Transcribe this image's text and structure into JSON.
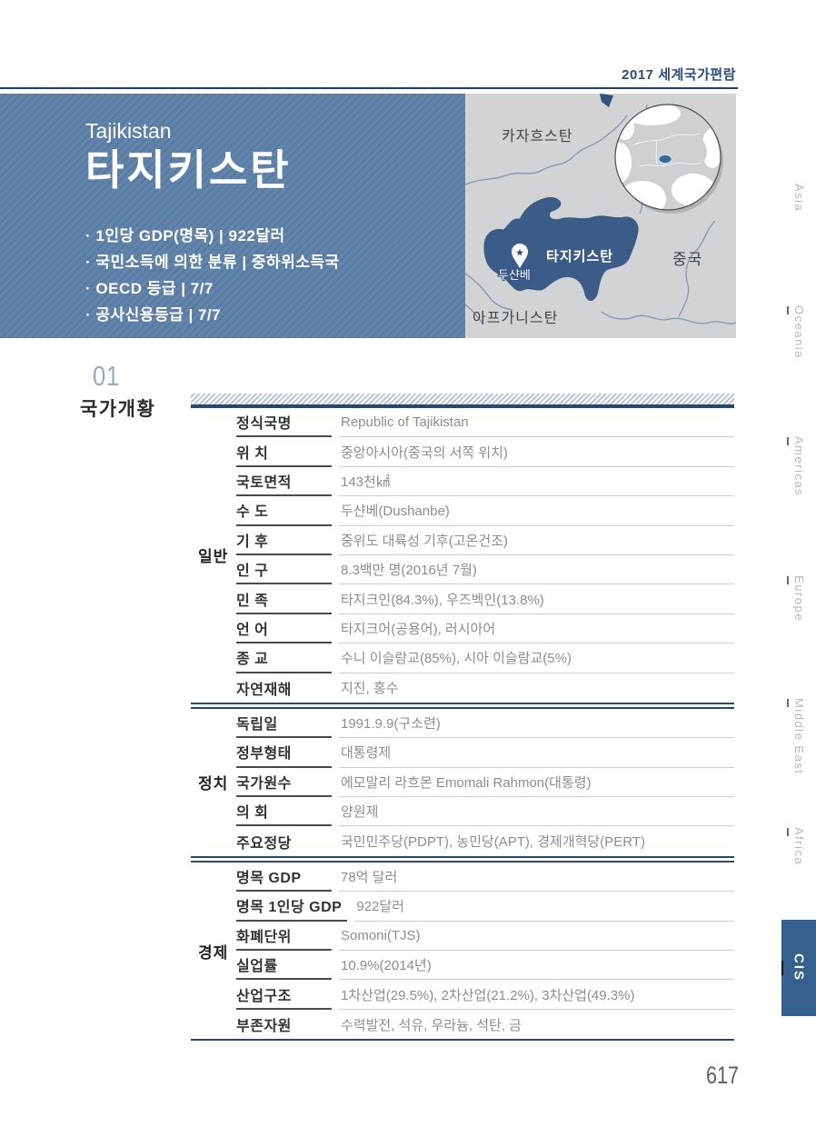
{
  "page": {
    "header": "2017 세계국가편람",
    "page_number": "617"
  },
  "colors": {
    "accent_navy": "#27486f",
    "banner_blue": "#6184ab",
    "active_tab_blue": "#36608e",
    "country_shape_blue": "#3a5c86"
  },
  "banner": {
    "country_en": "Tajikistan",
    "country_ko": "타지키스탄",
    "bullets": [
      "· 1인당 GDP(명목)  |  922달러",
      "· 국민소득에 의한 분류  |  중하위소득국",
      "· OECD 등급  |  7/7",
      "· 공사신용등급  |  7/7"
    ]
  },
  "map": {
    "labels": {
      "kazakhstan": "카자흐스탄",
      "china": "중국",
      "afghanistan": "아프가니스탄",
      "tajikistan": "타지키스탄",
      "capital": "두샨베"
    }
  },
  "section": {
    "number": "01",
    "title": "국가개황"
  },
  "table": {
    "groups": [
      {
        "name": "일반",
        "rows": [
          {
            "label": "정식국명",
            "value": "Republic of Tajikistan"
          },
          {
            "label": "위 치",
            "value": "중앙아시아(중국의 서쪽 위치)"
          },
          {
            "label": "국토면적",
            "value": "143천㎢"
          },
          {
            "label": "수 도",
            "value": "두샨베(Dushanbe)"
          },
          {
            "label": "기 후",
            "value": "중위도 대륙성 기후(고온건조)"
          },
          {
            "label": "인 구",
            "value": "8.3백만 명(2016년 7월)"
          },
          {
            "label": "민 족",
            "value": "타지크인(84.3%), 우즈벡인(13.8%)"
          },
          {
            "label": "언 어",
            "value": "타지크어(공용어), 러시아어"
          },
          {
            "label": "종 교",
            "value": "수니 이슬람교(85%), 시아 이슬람교(5%)"
          },
          {
            "label": "자연재해",
            "value": "지진, 홍수"
          }
        ]
      },
      {
        "name": "정치",
        "rows": [
          {
            "label": "독립일",
            "value": "1991.9.9(구소련)"
          },
          {
            "label": "정부형태",
            "value": "대통령제"
          },
          {
            "label": "국가원수",
            "value": "에모말리 라흐몬 Emomali Rahmon(대통령)"
          },
          {
            "label": "의 회",
            "value": "양원제"
          },
          {
            "label": "주요정당",
            "value": "국민민주당(PDPT), 농민당(APT), 경제개혁당(PERT)"
          }
        ]
      },
      {
        "name": "경제",
        "rows": [
          {
            "label": "명목 GDP",
            "value": "78억 달러"
          },
          {
            "label": "명목 1인당 GDP",
            "value": "922달러"
          },
          {
            "label": "화폐단위",
            "value": "Somoni(TJS)"
          },
          {
            "label": "실업률",
            "value": "10.9%(2014년)"
          },
          {
            "label": "산업구조",
            "value": "1차산업(29.5%), 2차산업(21.2%), 3차산업(49.3%)"
          },
          {
            "label": "부존자원",
            "value": "수력발전, 석유, 우라늄, 석탄, 금"
          }
        ]
      }
    ]
  },
  "sidebar": {
    "items": [
      {
        "label": "Asia",
        "active": false
      },
      {
        "label": "Oceania",
        "active": false
      },
      {
        "label": "Americas",
        "active": false
      },
      {
        "label": "Europe",
        "active": false
      },
      {
        "label": "Middle East",
        "active": false
      },
      {
        "label": "Africa",
        "active": false
      },
      {
        "label": "CIS",
        "active": true
      }
    ]
  }
}
